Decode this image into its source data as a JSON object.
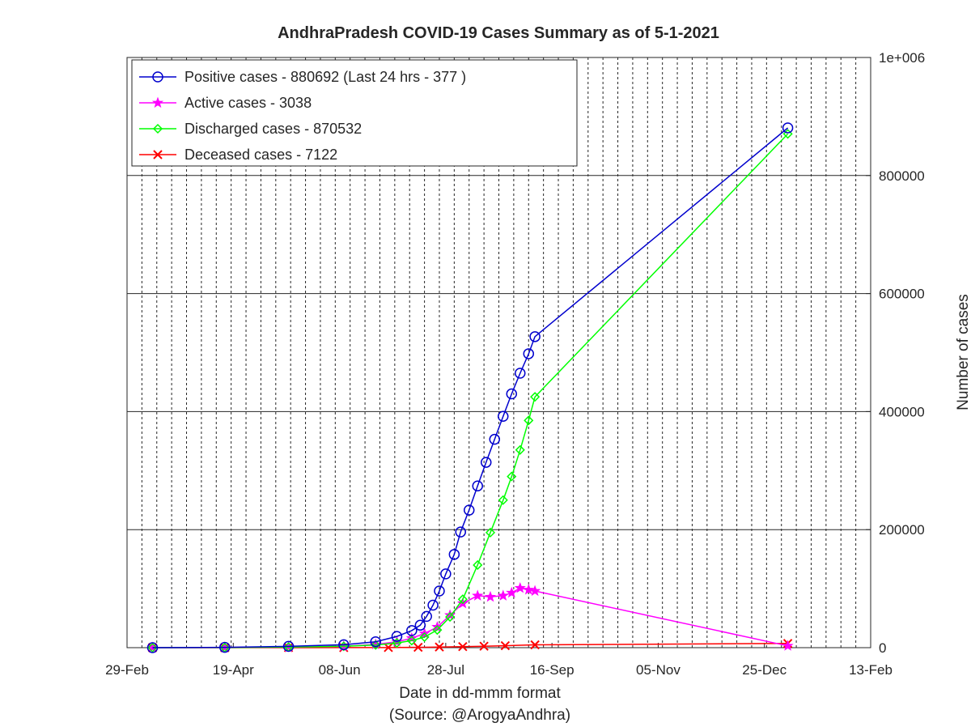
{
  "chart_data": {
    "type": "line",
    "title": "AndhraPradesh COVID-19 Cases Summary as of 5-1-2021",
    "xlabel": "Date in dd-mmm format",
    "source": "(Source: @ArogyaAndhra)",
    "ylabel": "Number of cases",
    "x_ticks": [
      "29-Feb",
      "19-Apr",
      "08-Jun",
      "28-Jul",
      "16-Sep",
      "05-Nov",
      "25-Dec",
      "13-Feb"
    ],
    "x_range": [
      "2020-02-29",
      "2021-02-13"
    ],
    "y_ticks": [
      "0",
      "200000",
      "400000",
      "600000",
      "800000",
      "1e+006"
    ],
    "y_range": [
      0,
      1000000
    ],
    "grid": "vertical dashed, horizontal solid",
    "y_axis_side": "right",
    "legend_position": "top-left",
    "series": [
      {
        "name": "Positive cases - 880692 (Last 24 hrs - 377 )",
        "color": "#0000cd",
        "marker": "circle",
        "dates": [
          "2020-03-12",
          "2020-04-15",
          "2020-05-15",
          "2020-06-10",
          "2020-06-25",
          "2020-07-05",
          "2020-07-12",
          "2020-07-16",
          "2020-07-19",
          "2020-07-22",
          "2020-07-25",
          "2020-07-28",
          "2020-08-01",
          "2020-08-04",
          "2020-08-08",
          "2020-08-12",
          "2020-08-16",
          "2020-08-20",
          "2020-08-24",
          "2020-08-28",
          "2020-09-01",
          "2020-09-05",
          "2020-09-08",
          "2021-01-05"
        ],
        "values": [
          0,
          600,
          2200,
          5000,
          10000,
          19000,
          29000,
          38000,
          53000,
          72000,
          96000,
          125000,
          158000,
          196000,
          233000,
          274000,
          314000,
          353000,
          392000,
          430000,
          465000,
          498000,
          527000,
          880692
        ]
      },
      {
        "name": "Active cases - 3038",
        "color": "#ff00ff",
        "marker": "star",
        "dates": [
          "2020-03-12",
          "2020-04-15",
          "2020-05-15",
          "2020-06-10",
          "2020-06-25",
          "2020-07-05",
          "2020-07-12",
          "2020-07-18",
          "2020-07-24",
          "2020-07-30",
          "2020-08-05",
          "2020-08-12",
          "2020-08-18",
          "2020-08-24",
          "2020-08-28",
          "2020-09-01",
          "2020-09-05",
          "2020-09-08",
          "2021-01-05"
        ],
        "values": [
          0,
          400,
          1100,
          2500,
          5500,
          10000,
          16000,
          24000,
          35000,
          55000,
          75000,
          88000,
          86000,
          88000,
          93000,
          101000,
          98000,
          96000,
          3038
        ]
      },
      {
        "name": "Discharged cases - 870532",
        "color": "#00ff00",
        "marker": "diamond",
        "dates": [
          "2020-03-12",
          "2020-04-15",
          "2020-05-15",
          "2020-06-10",
          "2020-06-25",
          "2020-07-05",
          "2020-07-12",
          "2020-07-18",
          "2020-07-24",
          "2020-07-30",
          "2020-08-05",
          "2020-08-12",
          "2020-08-18",
          "2020-08-24",
          "2020-08-28",
          "2020-09-01",
          "2020-09-05",
          "2020-09-08",
          "2021-01-05"
        ],
        "values": [
          0,
          200,
          1000,
          2300,
          4500,
          8000,
          12000,
          18000,
          30000,
          52000,
          82000,
          140000,
          195000,
          250000,
          290000,
          335000,
          385000,
          425000,
          870532
        ]
      },
      {
        "name": "Deceased cases - 7122",
        "color": "#ff0000",
        "marker": "x",
        "dates": [
          "2020-03-12",
          "2020-04-15",
          "2020-05-15",
          "2020-06-10",
          "2020-07-01",
          "2020-07-15",
          "2020-07-25",
          "2020-08-05",
          "2020-08-15",
          "2020-08-25",
          "2020-09-08",
          "2021-01-05"
        ],
        "values": [
          0,
          20,
          50,
          100,
          200,
          600,
          1100,
          1800,
          2500,
          3300,
          4800,
          7122
        ]
      }
    ]
  }
}
